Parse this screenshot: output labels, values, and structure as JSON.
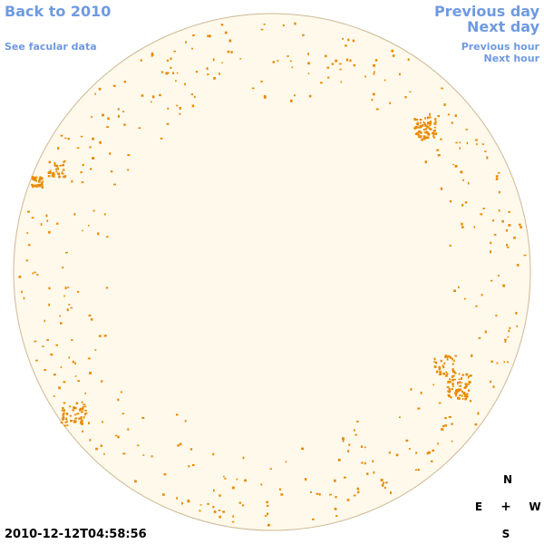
{
  "nav": {
    "back": "Back to 2010",
    "facular": "See facular data",
    "prev_day": "Previous day",
    "next_day": "Next day",
    "prev_hour": "Previous hour",
    "next_hour": "Next hour"
  },
  "timestamp": "2010-12-12T04:58:56",
  "compass": {
    "north": "N",
    "east": "E",
    "center": "+",
    "west": "W",
    "south": "S"
  },
  "colors": {
    "disk_fill": "#fff9ec",
    "disk_edge": "#cdb894",
    "spots": "#e88a00",
    "link": "#6f9ae0"
  }
}
